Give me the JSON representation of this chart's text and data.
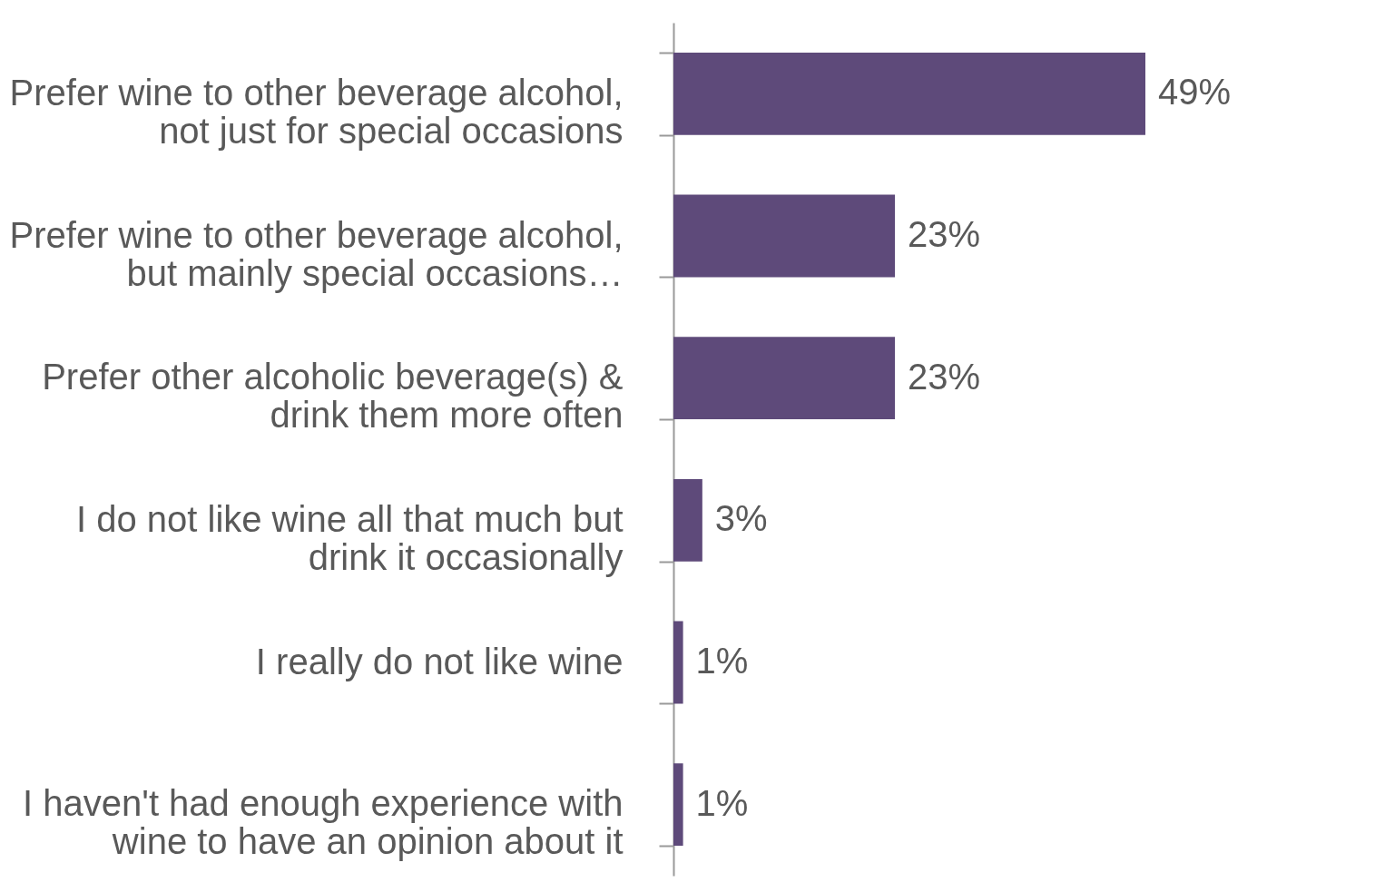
{
  "chart_data": {
    "type": "bar",
    "orientation": "horizontal",
    "categories": [
      "Prefer wine to other beverage alcohol, not just for special occasions",
      "Prefer wine to other beverage alcohol, but mainly special occasions…",
      "Prefer other alcoholic beverage(s) & drink them more often",
      "I do not like wine all that much but drink it occasionally",
      "I really do not like wine",
      "I haven't had enough experience with wine to have an opinion about it"
    ],
    "values": [
      49,
      23,
      23,
      3,
      1,
      1
    ],
    "value_labels": [
      "49%",
      "23%",
      "23%",
      "3%",
      "1%",
      "1%"
    ],
    "color": "#5e4a7a",
    "grid": false,
    "tick_labels": "y"
  }
}
